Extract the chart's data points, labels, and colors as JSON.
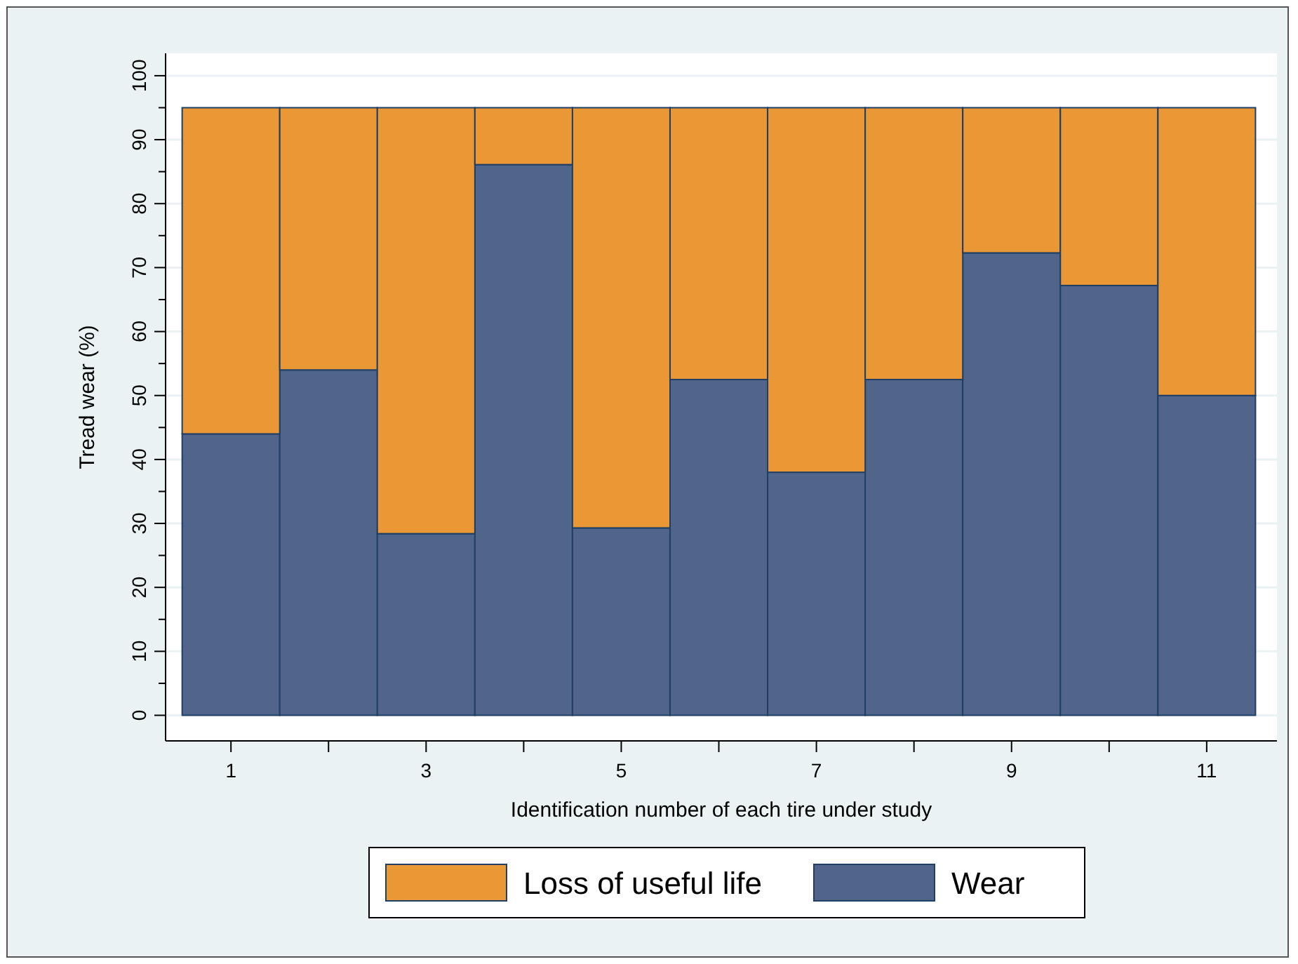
{
  "chart_data": {
    "type": "bar",
    "stacked": true,
    "xlabel": "Identification number of each tire under study",
    "ylabel": "Tread wear (%)",
    "x": [
      1,
      2,
      3,
      4,
      5,
      6,
      7,
      8,
      9,
      10,
      11
    ],
    "series": [
      {
        "name": "Wear",
        "color": "#51658b",
        "values": [
          44,
          54,
          28.4,
          86.1,
          29.3,
          52.5,
          38,
          52.5,
          72.3,
          67.2,
          50
        ]
      },
      {
        "name": "Loss of useful life",
        "color": "#e99835",
        "values": [
          51,
          41,
          66.6,
          8.9,
          65.7,
          42.5,
          57,
          42.5,
          22.7,
          27.8,
          45
        ]
      }
    ],
    "xlim": [
      0.33,
      11.72
    ],
    "xticks": [
      1,
      {
        "value": 2,
        "label": null
      },
      3,
      {
        "value": 4,
        "label": null
      },
      5,
      {
        "value": 6,
        "label": null
      },
      7,
      {
        "value": 8,
        "label": null
      },
      9,
      {
        "value": 10,
        "label": null
      },
      11
    ],
    "ylim": [
      -4,
      103.5
    ],
    "yticks": [
      0,
      {
        "value": 5,
        "label": null
      },
      10,
      {
        "value": 15,
        "label": null
      },
      20,
      {
        "value": 25,
        "label": null
      },
      30,
      {
        "value": 35,
        "label": null
      },
      40,
      {
        "value": 45,
        "label": null
      },
      50,
      {
        "value": 55,
        "label": null
      },
      60,
      {
        "value": 65,
        "label": null
      },
      70,
      {
        "value": 75,
        "label": null
      },
      80,
      {
        "value": 85,
        "label": null
      },
      90,
      {
        "value": 95,
        "label": null
      },
      100
    ],
    "grid": "y",
    "legend": "bottom"
  }
}
